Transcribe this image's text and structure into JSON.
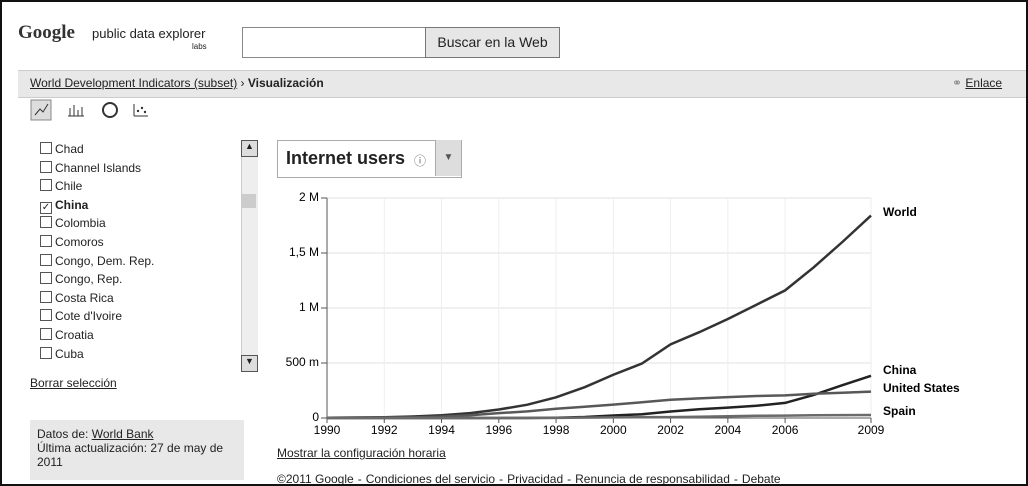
{
  "header": {
    "logo": "Google",
    "product": "public data explorer",
    "badge": "labs",
    "search_button": "Buscar en la Web"
  },
  "breadcrumb": {
    "parent": "World Development Indicators (subset)",
    "separator": "›",
    "current": "Visualización",
    "link": "Enlace"
  },
  "sidebar": {
    "countries": [
      {
        "name": "Chad",
        "checked": false
      },
      {
        "name": "Channel Islands",
        "checked": false
      },
      {
        "name": "Chile",
        "checked": false
      },
      {
        "name": "China",
        "checked": true
      },
      {
        "name": "Colombia",
        "checked": false
      },
      {
        "name": "Comoros",
        "checked": false
      },
      {
        "name": "Congo, Dem. Rep.",
        "checked": false
      },
      {
        "name": "Congo, Rep.",
        "checked": false
      },
      {
        "name": "Costa Rica",
        "checked": false
      },
      {
        "name": "Cote d'Ivoire",
        "checked": false
      },
      {
        "name": "Croatia",
        "checked": false
      },
      {
        "name": "Cuba",
        "checked": false
      }
    ],
    "clear": "Borrar selección",
    "source_label": "Datos de:",
    "source": "World Bank",
    "updated": "Última actualización: 27 de may de 2011"
  },
  "chart_data": {
    "type": "line",
    "title": "Internet users",
    "x": [
      1990,
      1991,
      1992,
      1993,
      1994,
      1995,
      1996,
      1997,
      1998,
      1999,
      2000,
      2001,
      2002,
      2003,
      2004,
      2005,
      2006,
      2007,
      2008,
      2009
    ],
    "series": [
      {
        "name": "World",
        "color": "#333333",
        "values": [
          2600000,
          4400000,
          7000000,
          14000000,
          25000000,
          44000000,
          77000000,
          121000000,
          188000000,
          280000000,
          393000000,
          495000000,
          670000000,
          780000000,
          900000000,
          1030000000,
          1160000000,
          1370000000,
          1600000000,
          1840000000
        ]
      },
      {
        "name": "China",
        "color": "#222222",
        "values": [
          0,
          0,
          0,
          0,
          14000,
          60000,
          160000,
          400000,
          2100000,
          8900000,
          22500000,
          33700000,
          59100000,
          79500000,
          94000000,
          111000000,
          137000000,
          210000000,
          298000000,
          384000000
        ]
      },
      {
        "name": "United States",
        "color": "#585858",
        "values": [
          2000000,
          3000000,
          5000000,
          6000000,
          12000000,
          25000000,
          44000000,
          60000000,
          84000000,
          102000000,
          122000000,
          143000000,
          166000000,
          178000000,
          190000000,
          200000000,
          206000000,
          220000000,
          230000000,
          240000000
        ]
      },
      {
        "name": "Spain",
        "color": "#6a6a6a",
        "values": [
          10000,
          30000,
          50000,
          70000,
          110000,
          150000,
          530000,
          1100000,
          1700000,
          3000000,
          5400000,
          7400000,
          8500000,
          11400000,
          16000000,
          20000000,
          22000000,
          25000000,
          26000000,
          27000000
        ]
      }
    ],
    "xlim": [
      1990,
      2009
    ],
    "xticks": [
      1990,
      1992,
      1994,
      1996,
      1998,
      2000,
      2002,
      2004,
      2006,
      2009
    ],
    "ylim": [
      0,
      2000000000
    ],
    "yticks": [
      {
        "value": 0,
        "label": "0"
      },
      {
        "value": 500000000,
        "label": "500 m"
      },
      {
        "value": 1000000000,
        "label": "1 M"
      },
      {
        "value": 1500000000,
        "label": "1,5 M"
      },
      {
        "value": 2000000000,
        "label": "2 M"
      }
    ],
    "grid": true
  },
  "timezone_link": "Mostrar la configuración horaria",
  "footer": {
    "copyright": "©2011 Google",
    "separator": "-",
    "links": [
      "Condiciones del servicio",
      "Privacidad",
      "Renuncia de responsabilidad",
      "Debate"
    ]
  }
}
